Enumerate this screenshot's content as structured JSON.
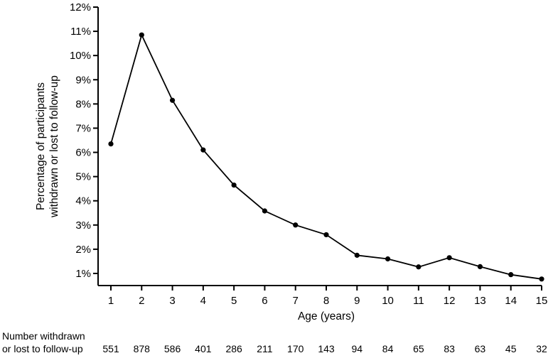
{
  "chart_data": {
    "type": "line",
    "title": "",
    "xlabel": "Age (years)",
    "ylabel_lines": [
      "Percentage of participants",
      "withdrawn or lost to follow-up"
    ],
    "x": [
      1,
      2,
      3,
      4,
      5,
      6,
      7,
      8,
      9,
      10,
      11,
      12,
      13,
      14,
      15
    ],
    "y": [
      6.35,
      10.85,
      8.15,
      6.1,
      4.65,
      3.58,
      3.0,
      2.6,
      1.75,
      1.6,
      1.27,
      1.65,
      1.28,
      0.95,
      0.77
    ],
    "xlim": [
      1,
      15
    ],
    "ylim": [
      0.5,
      12
    ],
    "yticks": [
      1,
      2,
      3,
      4,
      5,
      6,
      7,
      8,
      9,
      10,
      11,
      12
    ],
    "ytick_labels": [
      "1%",
      "2%",
      "3%",
      "4%",
      "5%",
      "6%",
      "7%",
      "8%",
      "9%",
      "10%",
      "11%",
      "12%"
    ],
    "xtick_labels": [
      "1",
      "2",
      "3",
      "4",
      "5",
      "6",
      "7",
      "8",
      "9",
      "10",
      "11",
      "12",
      "13",
      "14",
      "15"
    ],
    "grid": false,
    "line_color": "#000000",
    "marker_color": "#000000",
    "count_row": {
      "label_lines": [
        "Number withdrawn",
        "or lost to follow-up"
      ],
      "values": [
        "551",
        "878",
        "586",
        "401",
        "286",
        "211",
        "170",
        "143",
        "94",
        "84",
        "65",
        "83",
        "63",
        "45",
        "32"
      ]
    }
  }
}
